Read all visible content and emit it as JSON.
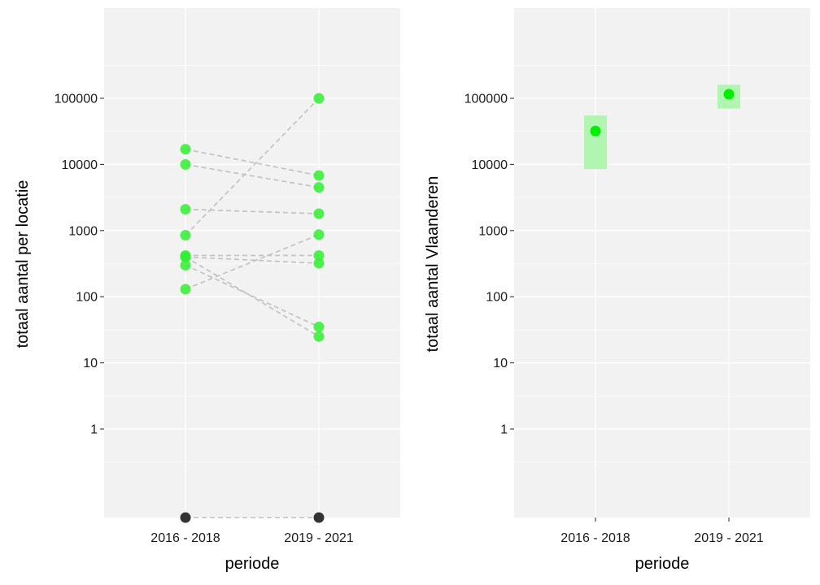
{
  "colors": {
    "panel_bg": "#f2f2f2",
    "grid": "#ffffff",
    "point_green": "#33ee33",
    "point_black": "#333333",
    "connector": "#c0c0c0",
    "interval": "#a8f5a8",
    "estimate": "#00ee00"
  },
  "chart_data": [
    {
      "type": "scatter",
      "xlabel": "periode",
      "ylabel": "totaal aantal per locatie",
      "y_scale": "log10",
      "categories": [
        "2016 - 2018",
        "2019 - 2021"
      ],
      "y_ticks": [
        {
          "value": 1,
          "label": "1"
        },
        {
          "value": 10,
          "label": "10"
        },
        {
          "value": 100,
          "label": "100"
        },
        {
          "value": 1000,
          "label": "1000"
        },
        {
          "value": 10000,
          "label": "10000"
        },
        {
          "value": 100000,
          "label": "100000"
        }
      ],
      "locations": [
        {
          "values": [
            17000,
            6800
          ]
        },
        {
          "values": [
            10000,
            4500
          ]
        },
        {
          "values": [
            2100,
            1800
          ]
        },
        {
          "values": [
            850,
            100000
          ]
        },
        {
          "values": [
            420,
            420
          ]
        },
        {
          "values": [
            400,
            320
          ]
        },
        {
          "values": [
            400,
            25
          ]
        },
        {
          "values": [
            300,
            35
          ]
        },
        {
          "values": [
            130,
            870
          ]
        },
        {
          "values": [
            0,
            0
          ]
        }
      ]
    },
    {
      "type": "scatter",
      "xlabel": "periode",
      "ylabel": "totaal aantal Vlaanderen",
      "y_scale": "log10",
      "categories": [
        "2016 - 2018",
        "2019 - 2021"
      ],
      "y_ticks": [
        {
          "value": 1,
          "label": "1"
        },
        {
          "value": 10,
          "label": "10"
        },
        {
          "value": 100,
          "label": "100"
        },
        {
          "value": 1000,
          "label": "1000"
        },
        {
          "value": 10000,
          "label": "10000"
        },
        {
          "value": 100000,
          "label": "100000"
        }
      ],
      "estimates": [
        {
          "category": "2016 - 2018",
          "value": 32000,
          "lower": 8500,
          "upper": 55000
        },
        {
          "category": "2019 - 2021",
          "value": 115000,
          "lower": 70000,
          "upper": 160000
        }
      ]
    }
  ]
}
